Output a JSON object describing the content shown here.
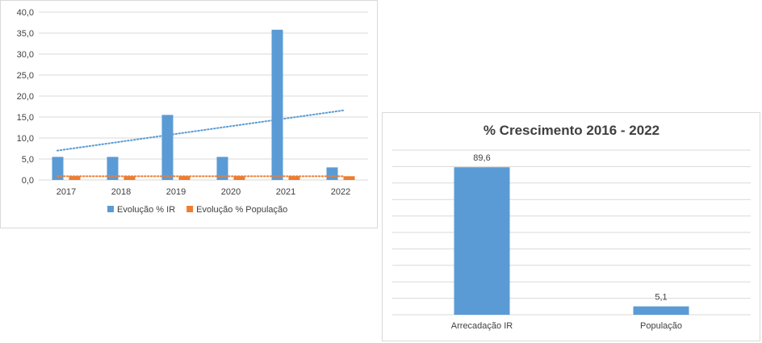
{
  "chart_data": [
    {
      "type": "bar",
      "categories": [
        "2017",
        "2018",
        "2019",
        "2020",
        "2021",
        "2022"
      ],
      "series": [
        {
          "name": "Evolução % IR",
          "values": [
            5.5,
            5.5,
            15.5,
            5.5,
            35.8,
            3.0
          ],
          "color": "#5b9bd5"
        },
        {
          "name": "Evolução % População",
          "values": [
            0.9,
            0.9,
            0.9,
            0.9,
            0.9,
            0.9
          ],
          "color": "#ed7d31"
        }
      ],
      "trendlines": [
        {
          "series": "Evolução % IR",
          "from": 7.0,
          "to": 16.6,
          "color": "#5b9bd5",
          "style": "dotted"
        },
        {
          "series": "Evolução % População",
          "from": 0.9,
          "to": 0.9,
          "color": "#ed7d31",
          "style": "dotted"
        }
      ],
      "yticks": [
        "0,0",
        "5,0",
        "10,0",
        "15,0",
        "20,0",
        "25,0",
        "30,0",
        "35,0",
        "40,0"
      ],
      "ylim": [
        0,
        40
      ],
      "grid": true,
      "legend": "bottom"
    },
    {
      "type": "bar",
      "title": "% Crescimento 2016 - 2022",
      "categories": [
        "Arrecadação IR",
        "População"
      ],
      "values": [
        89.6,
        5.1
      ],
      "data_labels": [
        "89,6",
        "5,1"
      ],
      "color": "#5b9bd5",
      "ylim": [
        0,
        100
      ],
      "grid": true
    }
  ]
}
